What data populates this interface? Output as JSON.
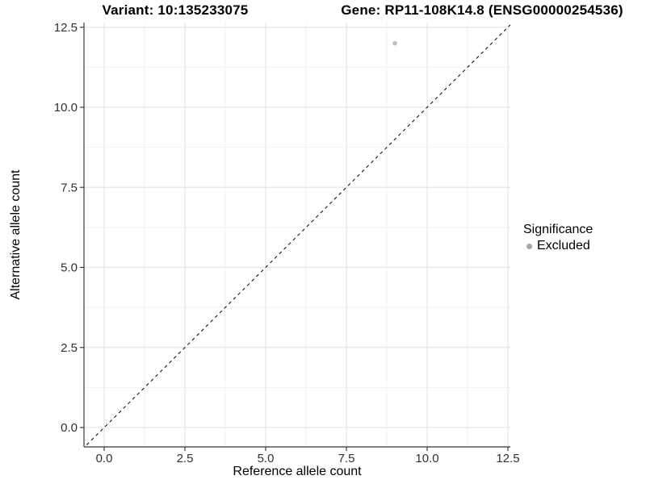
{
  "titles": {
    "variant": "Variant: 10:135233075",
    "gene": "Gene: RP11-108K14.8 (ENSG00000254536)"
  },
  "chart_data": {
    "type": "scatter",
    "title_left": "Variant: 10:135233075",
    "title_right": "Gene: RP11-108K14.8 (ENSG00000254536)",
    "xlabel": "Reference allele count",
    "ylabel": "Alternative allele count",
    "xlim": [
      0,
      12.5
    ],
    "ylim": [
      0,
      12.5
    ],
    "xtick_labels": [
      "0.0",
      "2.5",
      "5.0",
      "7.5",
      "10.0",
      "12.5"
    ],
    "ytick_labels": [
      "0.0",
      "2.5",
      "5.0",
      "7.5",
      "10.0",
      "12.5"
    ],
    "grid": true,
    "points": [
      {
        "x": 9,
        "y": 12,
        "series": "Excluded"
      }
    ],
    "reference_line": {
      "slope": 1,
      "intercept": 0,
      "style": "dashed",
      "color": "#000000"
    },
    "legend": {
      "position": "right",
      "title": "Significance",
      "items": [
        {
          "label": "Excluded",
          "color": "#b5b5b5"
        }
      ]
    }
  },
  "colors": {
    "background": "#ffffff",
    "grid_major": "#e6e6e6",
    "grid_minor": "#f2f2f2",
    "axis_line": "#383838",
    "tick_text": "#303030",
    "point": "#bdbdbd",
    "legend_dot": "#a6a6a6"
  }
}
